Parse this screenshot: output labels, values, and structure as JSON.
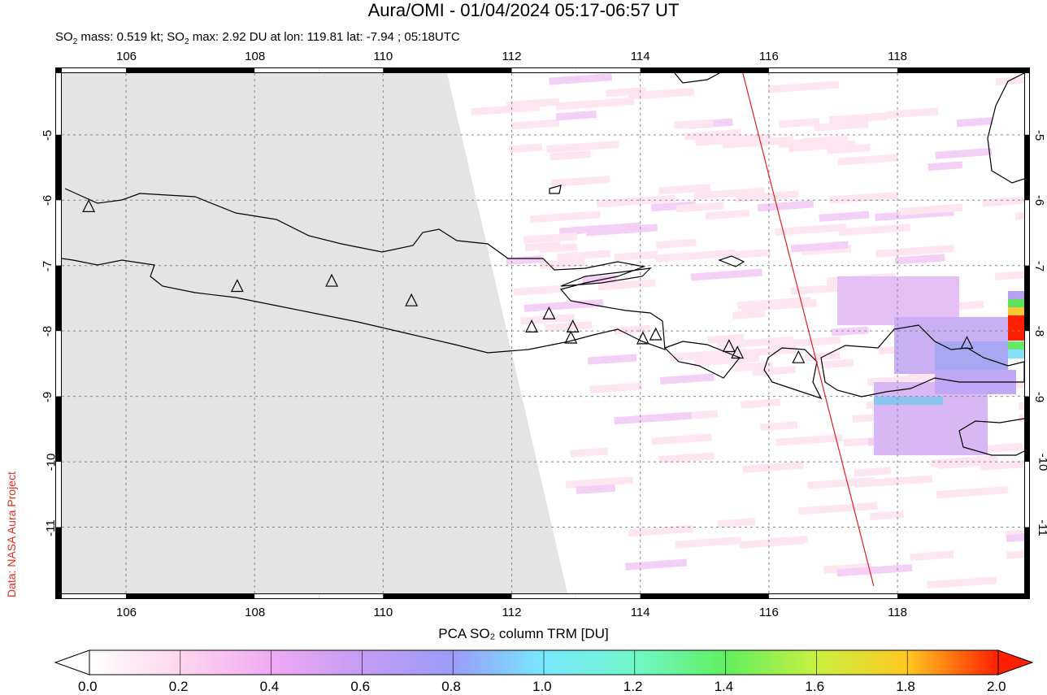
{
  "header": {
    "title": "Aura/OMI - 01/04/2024 05:17-06:57 UT",
    "subtitle_parts": [
      "SO",
      "2",
      " mass: 0.519 kt; SO",
      "2",
      " max: 2.92 DU at lon: 119.81 lat: -7.94 ; 05:18UTC"
    ]
  },
  "map": {
    "lon_range": [
      104.9,
      120.06
    ],
    "lat_range": [
      -12.1,
      -3.97
    ],
    "lon_ticks": [
      "106",
      "108",
      "110",
      "112",
      "114",
      "116",
      "118"
    ],
    "lat_ticks": [
      "-5",
      "-6",
      "-7",
      "-8",
      "-9",
      "-10",
      "-11"
    ],
    "grid": true,
    "volcanoes": [
      [
        105.42,
        -6.1
      ],
      [
        107.73,
        -7.32
      ],
      [
        109.2,
        -7.24
      ],
      [
        110.44,
        -7.54
      ],
      [
        112.31,
        -7.94
      ],
      [
        112.58,
        -7.74
      ],
      [
        112.95,
        -7.94
      ],
      [
        112.92,
        -8.11
      ],
      [
        114.04,
        -8.12
      ],
      [
        114.24,
        -8.06
      ],
      [
        115.38,
        -8.24
      ],
      [
        115.51,
        -8.34
      ],
      [
        116.46,
        -8.41
      ],
      [
        119.08,
        -8.19
      ]
    ],
    "orbit_track": [
      [
        115.58,
        -4.0
      ],
      [
        117.63,
        -11.9
      ]
    ],
    "colors": {
      "no_data": "#e4e4e4",
      "track": "#e02020",
      "coast": "#000000"
    }
  },
  "colorbar": {
    "title": "PCA SO₂ column TRM [DU]",
    "ticks": [
      "0.0",
      "0.2",
      "0.4",
      "0.6",
      "0.8",
      "1.0",
      "1.2",
      "1.4",
      "1.6",
      "1.8",
      "2.0"
    ],
    "range": [
      0,
      2
    ],
    "stops": [
      "#ffffff",
      "#ffd6ee",
      "#f0aaf4",
      "#c49cf4",
      "#9a9cf8",
      "#78e8ff",
      "#70f8c8",
      "#60f060",
      "#c8f040",
      "#ffc820",
      "#ff2000"
    ]
  },
  "credit": "Data: NASA Aura Project"
}
